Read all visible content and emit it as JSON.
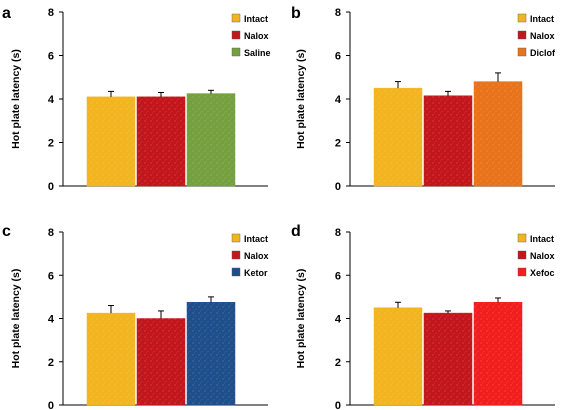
{
  "chart_data": [
    {
      "panel": "a",
      "type": "bar",
      "ylabel": "Hot plate latency (s)",
      "ylim": [
        0,
        8
      ],
      "yticks": [
        "0",
        "2",
        "4",
        "6",
        "8"
      ],
      "legend_position": "top-right",
      "series": [
        {
          "name": "Intact",
          "value": 4.1,
          "error": 0.25,
          "color": "#F2B51F"
        },
        {
          "name": "Nalox",
          "value": 4.1,
          "error": 0.2,
          "color": "#C3161C"
        },
        {
          "name": "Saline",
          "value": 4.25,
          "error": 0.15,
          "color": "#76A040"
        }
      ]
    },
    {
      "panel": "b",
      "type": "bar",
      "ylabel": "Hot plate latency (s)",
      "ylim": [
        0,
        8
      ],
      "yticks": [
        "0",
        "2",
        "4",
        "6",
        "8"
      ],
      "legend_position": "top-right",
      "series": [
        {
          "name": "Intact",
          "value": 4.5,
          "error": 0.3,
          "color": "#F2B51F"
        },
        {
          "name": "Nalox",
          "value": 4.15,
          "error": 0.2,
          "color": "#C3161C"
        },
        {
          "name": "Diclof",
          "value": 4.8,
          "error": 0.4,
          "color": "#E8731B"
        }
      ]
    },
    {
      "panel": "c",
      "type": "bar",
      "ylabel": "Hot plate latency (s)",
      "ylim": [
        0,
        8
      ],
      "yticks": [
        "0",
        "2",
        "4",
        "6",
        "8"
      ],
      "legend_position": "top-right",
      "series": [
        {
          "name": "Intact",
          "value": 4.25,
          "error": 0.35,
          "color": "#F2B51F"
        },
        {
          "name": "Nalox",
          "value": 4.0,
          "error": 0.35,
          "color": "#C3161C"
        },
        {
          "name": "Ketor",
          "value": 4.75,
          "error": 0.25,
          "color": "#1F4E8C"
        }
      ]
    },
    {
      "panel": "d",
      "type": "bar",
      "ylabel": "Hot plate latency (s)",
      "ylim": [
        0,
        8
      ],
      "yticks": [
        "0",
        "2",
        "4",
        "6",
        "8"
      ],
      "legend_position": "top-right",
      "series": [
        {
          "name": "Intact",
          "value": 4.5,
          "error": 0.25,
          "color": "#F2B51F"
        },
        {
          "name": "Nalox",
          "value": 4.25,
          "error": 0.1,
          "color": "#C3161C"
        },
        {
          "name": "Xefoc",
          "value": 4.75,
          "error": 0.2,
          "color": "#F21E1E"
        }
      ]
    }
  ]
}
